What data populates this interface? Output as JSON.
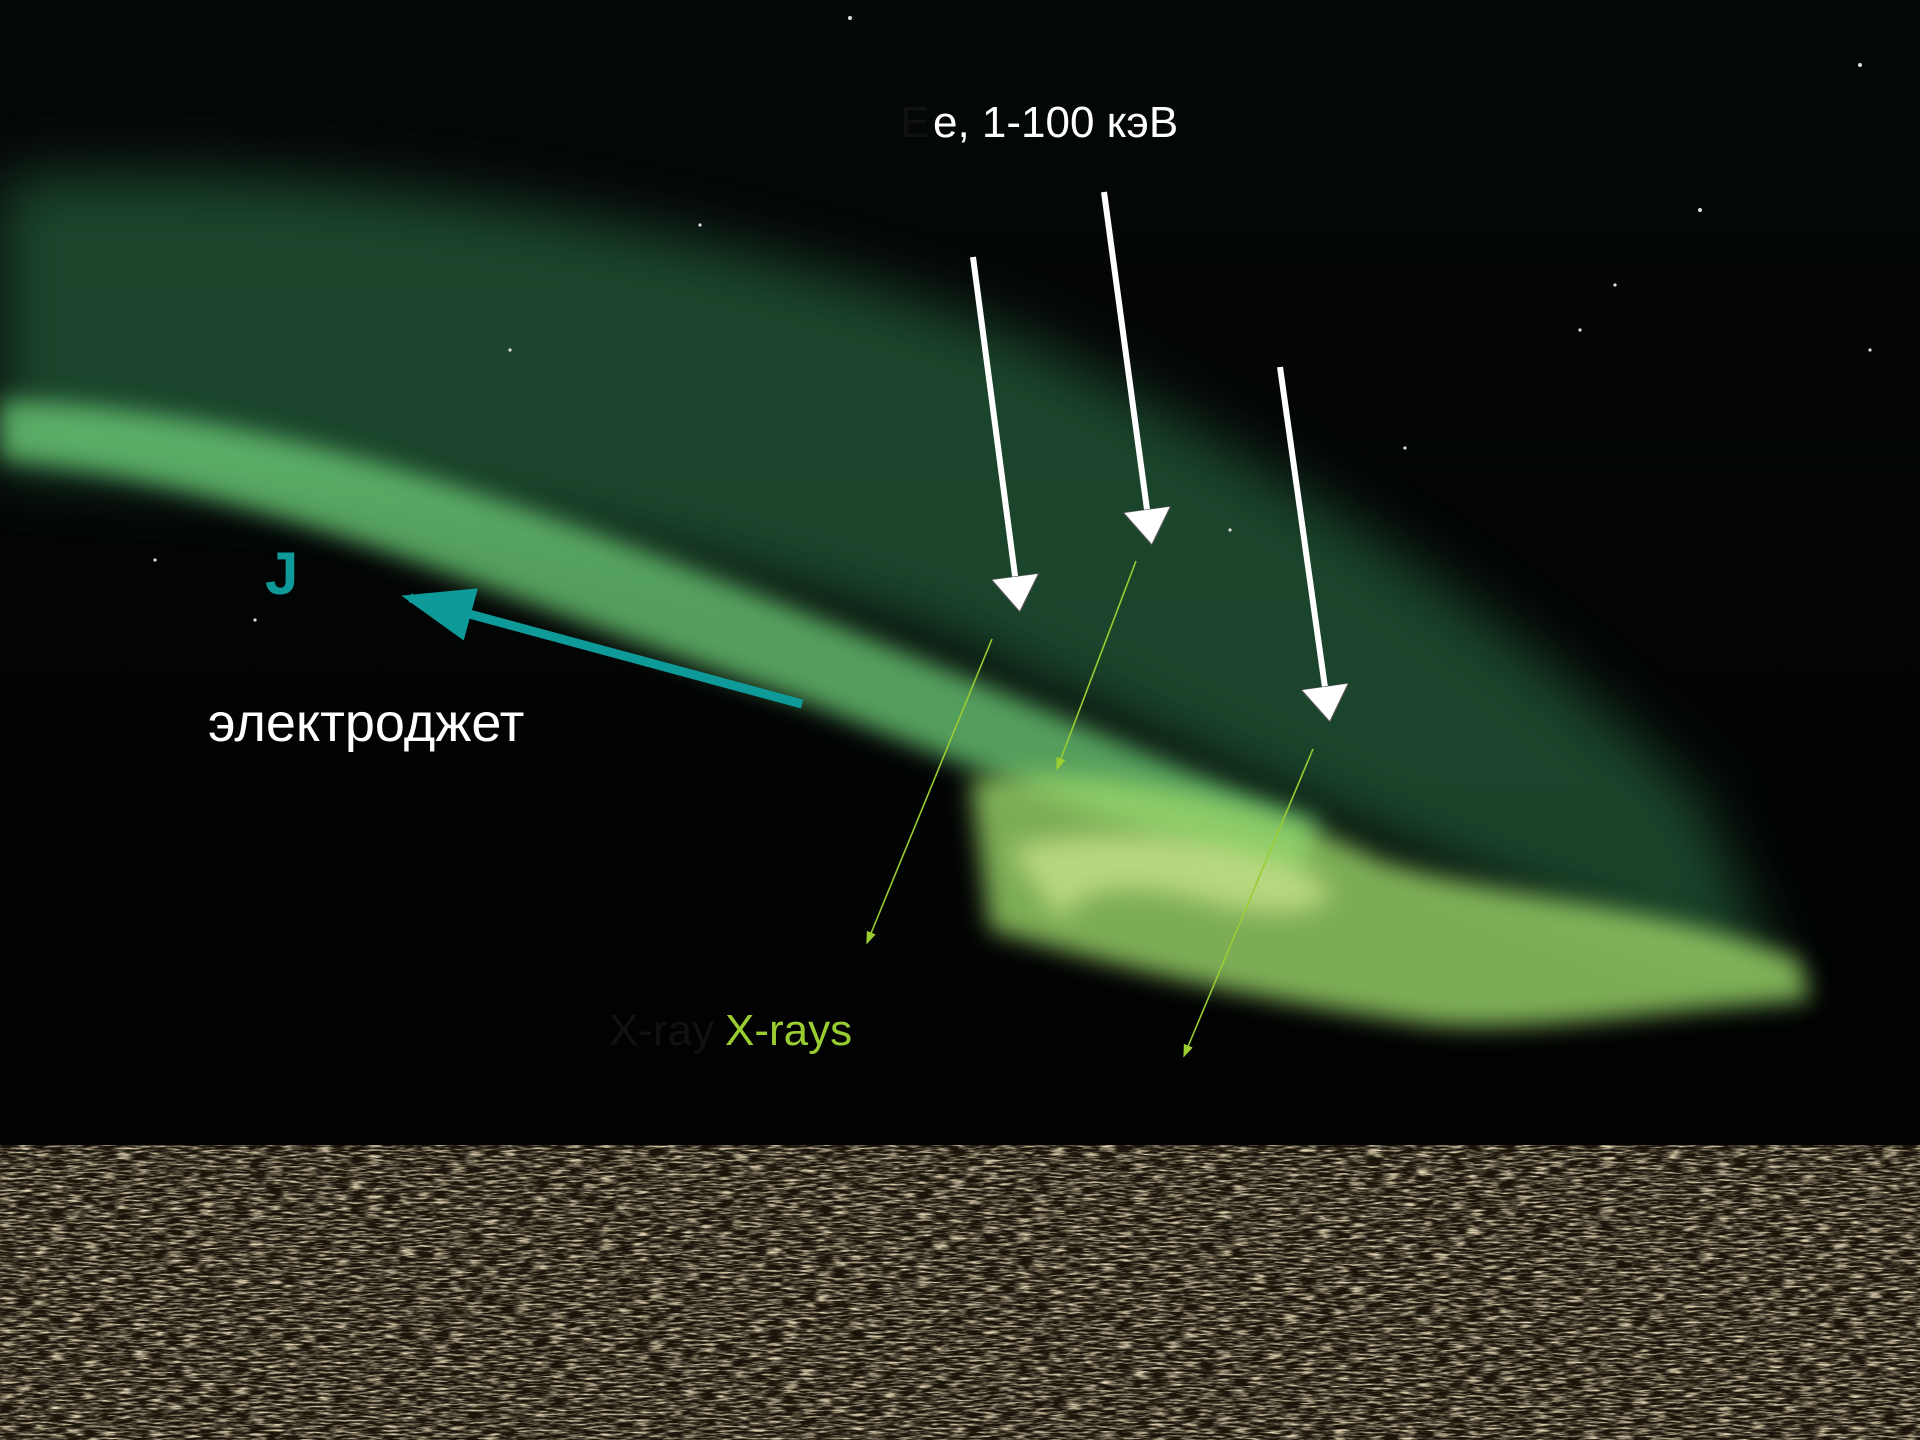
{
  "labels": {
    "energy_prefix": "E",
    "energy": "e, 1-100 кэВ",
    "current_symbol": "J",
    "electrojet": "электроджет",
    "xray_shadow": "X-ray",
    "xray": "X-rays"
  }
}
